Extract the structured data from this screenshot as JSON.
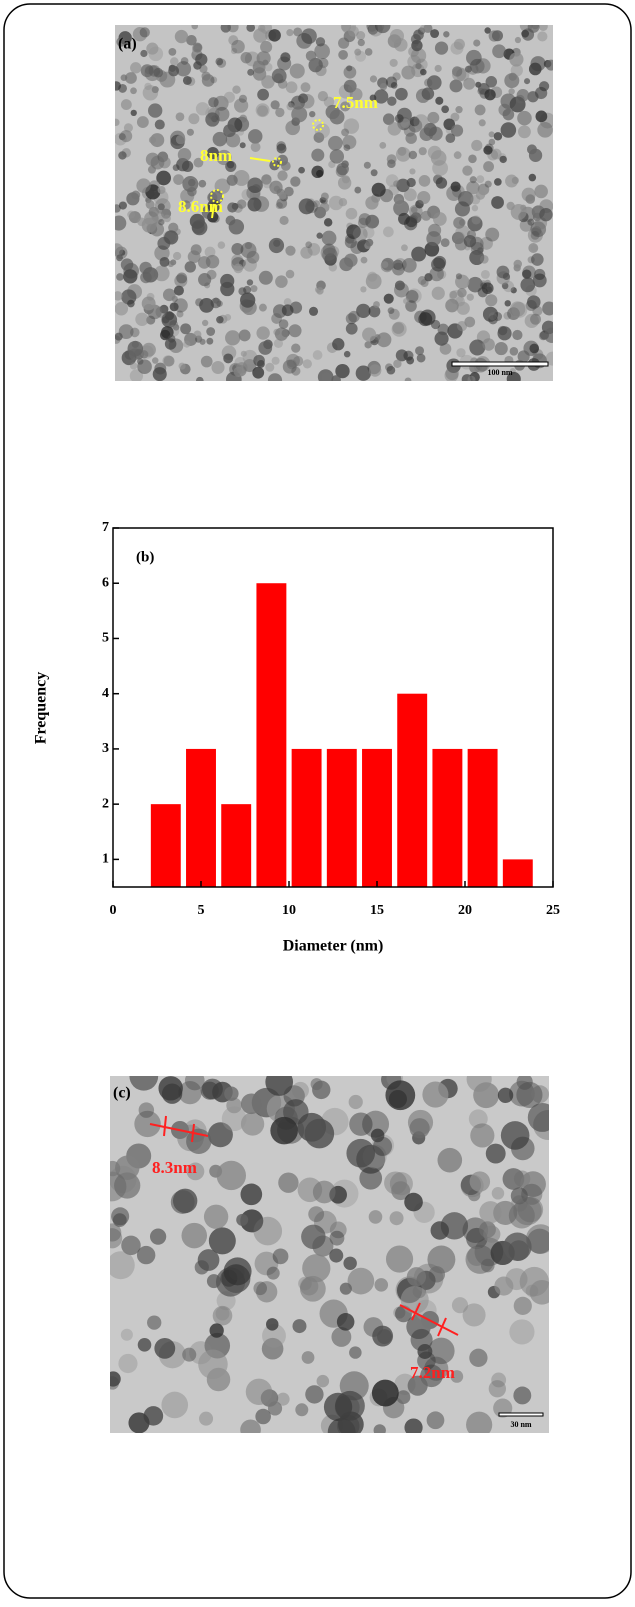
{
  "image_a": {
    "label": "(a)",
    "annotations": [
      "7.5nm",
      "8nm",
      "8.6nm"
    ],
    "scale_bar": "100 nm"
  },
  "chart_data": {
    "type": "bar",
    "label": "(b)",
    "x_label": "Diameter (nm)",
    "y_label": "Frequency",
    "x": [
      3,
      5,
      7,
      9,
      11,
      13,
      15,
      17,
      19,
      21,
      23
    ],
    "values": [
      2,
      3,
      2,
      6,
      3,
      3,
      3,
      4,
      3,
      3,
      1
    ],
    "color": "#ff0000",
    "xlim": [
      0,
      25
    ],
    "xticks": [
      0,
      5,
      10,
      15,
      20,
      25
    ],
    "ylim": [
      0.5,
      7
    ],
    "yticks": [
      1,
      2,
      3,
      4,
      5,
      6,
      7
    ]
  },
  "image_c": {
    "label": "(c)",
    "annotations": [
      "8.3nm",
      "7.2nm"
    ],
    "scale_bar": "30 nm"
  }
}
